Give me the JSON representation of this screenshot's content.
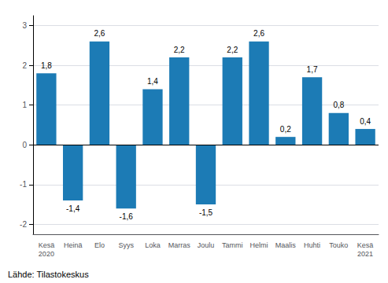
{
  "chart_data": {
    "type": "bar",
    "categories": [
      "Kesä\n2020",
      "Heinä",
      "Elo",
      "Syys",
      "Loka",
      "Marras",
      "Joulu",
      "Tammi",
      "Helmi",
      "Maalis",
      "Huhti",
      "Touko",
      "Kesä\n2021"
    ],
    "values": [
      1.8,
      -1.4,
      2.6,
      -1.6,
      1.4,
      2.2,
      -1.5,
      2.2,
      2.6,
      0.2,
      1.7,
      0.8,
      0.4
    ],
    "value_labels": [
      "1,8",
      "-1,4",
      "2,6",
      "-1,6",
      "1,4",
      "2,2",
      "-1,5",
      "2,2",
      "2,6",
      "0,2",
      "1,7",
      "0,8",
      "0,4"
    ],
    "data_labels": true,
    "color": "#1c7bb5",
    "ylim": [
      -2.25,
      3.25
    ],
    "yticks": [
      -2,
      -1,
      0,
      1,
      2,
      3
    ],
    "grid": true,
    "annotations": [
      "Lähde: Tilastokeskus"
    ]
  }
}
